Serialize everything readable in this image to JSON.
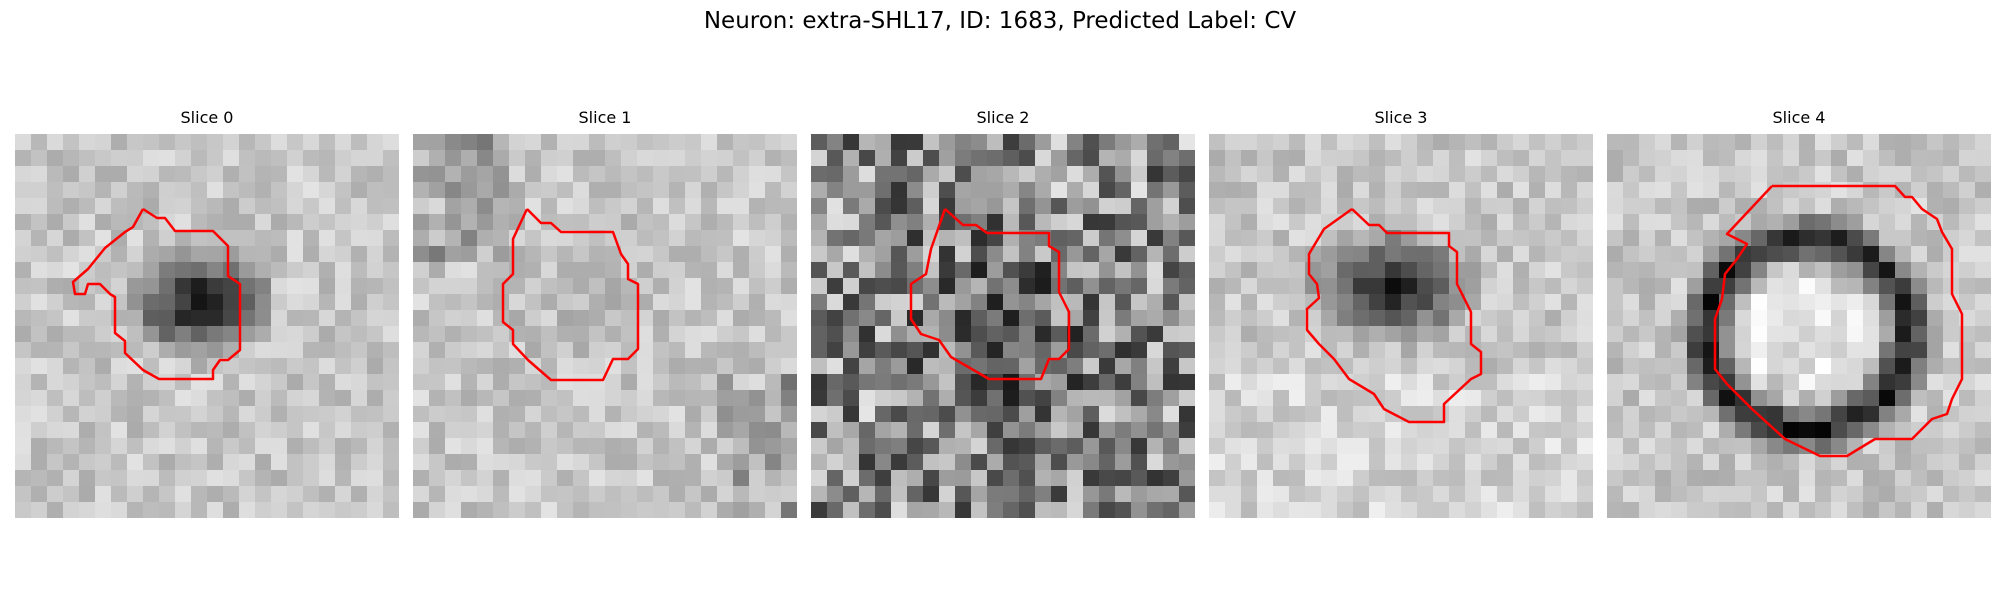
{
  "figure": {
    "title": "Neuron: extra-SHL17, ID: 1683, Predicted Label: CV",
    "contour_color": "#ff0000"
  },
  "panels": [
    {
      "title": "Slice 0",
      "blob": "dark-oval",
      "texture": "smooth"
    },
    {
      "title": "Slice 1",
      "blob": "light-field",
      "texture": "smooth"
    },
    {
      "title": "Slice 2",
      "blob": "noise",
      "texture": "noisy"
    },
    {
      "title": "Slice 3",
      "blob": "dark-arc",
      "texture": "smooth"
    },
    {
      "title": "Slice 4",
      "blob": "dark-ring",
      "texture": "smooth"
    }
  ]
}
